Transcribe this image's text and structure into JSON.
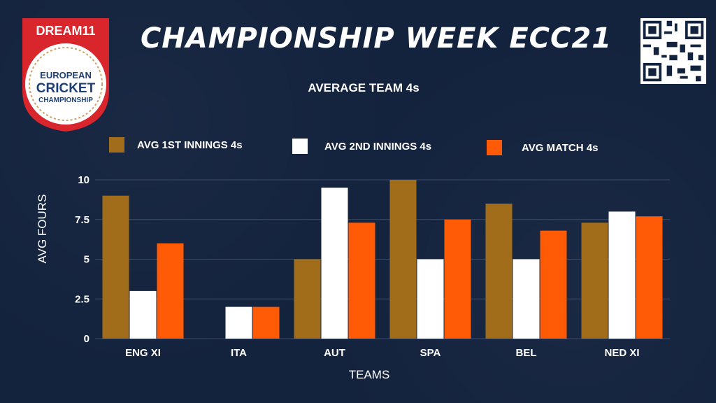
{
  "header": {
    "title": "CHAMPIONSHIP WEEK ECC21",
    "logo_top": "DREAM11",
    "logo_line1": "EUROPEAN",
    "logo_line2": "CRICKET",
    "logo_line3": "CHAMPIONSHIP"
  },
  "colors": {
    "series1": "#a16d1a",
    "series2": "#ffffff",
    "series3": "#ff5a05",
    "background": "#13223d",
    "logo_red": "#d9262c"
  },
  "chart_data": {
    "type": "bar",
    "title": "AVERAGE TEAM 4s",
    "xlabel": "TEAMS",
    "ylabel": "AVG FOURS",
    "categories": [
      "ENG XI",
      "ITA",
      "AUT",
      "SPA",
      "BEL",
      "NED XI"
    ],
    "series": [
      {
        "name": "AVG 1ST INNINGS 4s",
        "values": [
          9,
          0,
          5,
          10,
          8.5,
          7.3
        ]
      },
      {
        "name": "AVG 2ND INNINGS 4s",
        "values": [
          3,
          2,
          9.5,
          5,
          5,
          8
        ]
      },
      {
        "name": "AVG MATCH 4s",
        "values": [
          6,
          2,
          7.3,
          7.5,
          6.8,
          7.7
        ]
      }
    ],
    "ylim": [
      0,
      10
    ],
    "yticks": [
      "0",
      "2.5",
      "5",
      "7.5",
      "10"
    ],
    "ytick_values": [
      0,
      2.5,
      5,
      7.5,
      10
    ],
    "grid": true,
    "legend": "top"
  }
}
